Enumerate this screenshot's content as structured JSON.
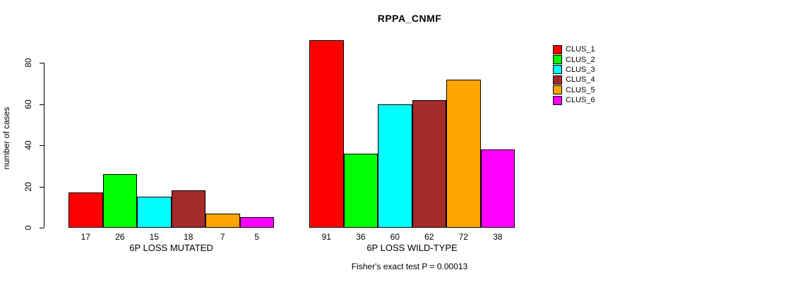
{
  "chart_data": {
    "type": "bar",
    "title": "RPPA_CNMF",
    "ylabel": "number of cases",
    "xlabel": "",
    "yticks": [
      0,
      20,
      40,
      60,
      80
    ],
    "ylim": [
      0,
      95
    ],
    "grid": false,
    "legend_position": "right",
    "legend": [
      "CLUS_1",
      "CLUS_2",
      "CLUS_3",
      "CLUS_4",
      "CLUS_5",
      "CLUS_6"
    ],
    "colors": [
      "#ff0000",
      "#00ff00",
      "#00ffff",
      "#a52a2a",
      "#ffa500",
      "#ff00ff"
    ],
    "categories": [
      "6P LOSS MUTATED",
      "6P LOSS WILD-TYPE"
    ],
    "series": [
      {
        "name": "CLUS_1",
        "values": [
          17,
          91
        ]
      },
      {
        "name": "CLUS_2",
        "values": [
          26,
          36
        ]
      },
      {
        "name": "CLUS_3",
        "values": [
          15,
          60
        ]
      },
      {
        "name": "CLUS_4",
        "values": [
          18,
          62
        ]
      },
      {
        "name": "CLUS_5",
        "values": [
          7,
          72
        ]
      },
      {
        "name": "CLUS_6",
        "values": [
          5,
          38
        ]
      }
    ],
    "footnote": "Fisher's exact test P = 0.00013"
  }
}
